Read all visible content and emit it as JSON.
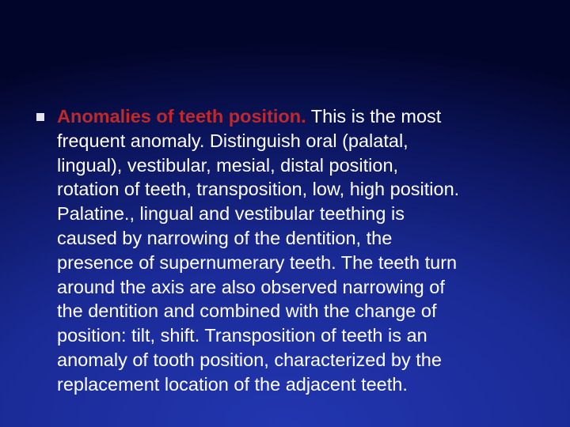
{
  "slide": {
    "bullet": {
      "lead": "Anomalies of teeth position.",
      "lines": [
        "This is the most",
        "frequent anomaly. Distinguish oral (palatal,",
        "lingual), vestibular, mesial, distal position,",
        "rotation of teeth, transposition, low, high position.",
        "Palatine., lingual and vestibular teething is",
        "caused by narrowing of the dentition, the",
        "presence of supernumerary teeth. The teeth turn",
        "around the axis are also observed narrowing of",
        "the dentition and combined with the change of",
        "position: tilt, shift. Transposition of teeth is an",
        "anomaly of tooth position, characterized by the",
        "replacement location of the adjacent teeth."
      ]
    }
  }
}
